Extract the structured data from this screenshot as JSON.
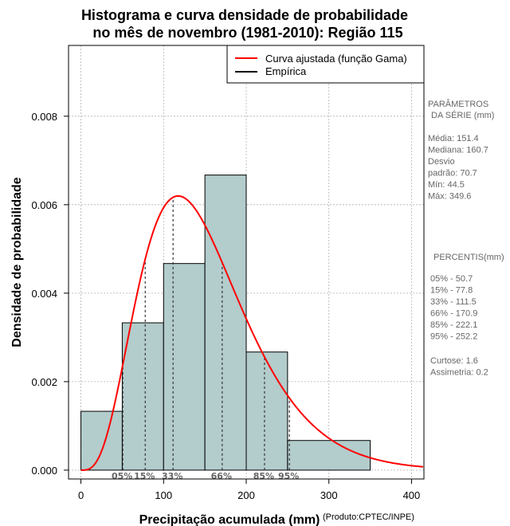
{
  "chart_data": {
    "type": "bar",
    "title_line1": "Histograma e curva densidade de probabilidade",
    "title_line2": "no mês de novembro (1981-2010): Região 115",
    "xlabel": "Precipitação acumulada (mm)",
    "ylabel": "Densidade de probabilidade",
    "credit": "(Produto:CPTEC/INPE)",
    "xlim": [
      -15,
      415
    ],
    "ylim": [
      -0.0002,
      0.0096
    ],
    "x_ticks": [
      0,
      100,
      200,
      300,
      400
    ],
    "x_tick_labels": [
      "0",
      "100",
      "200",
      "300",
      "400"
    ],
    "y_ticks": [
      0,
      0.002,
      0.004,
      0.006,
      0.008
    ],
    "y_tick_labels": [
      "0.000",
      "0.002",
      "0.004",
      "0.006",
      "0.008"
    ],
    "bins": [
      {
        "start": 0,
        "end": 50,
        "density": 0.00133
      },
      {
        "start": 50,
        "end": 100,
        "density": 0.00333
      },
      {
        "start": 100,
        "end": 150,
        "density": 0.00467
      },
      {
        "start": 150,
        "end": 200,
        "density": 0.00667
      },
      {
        "start": 200,
        "end": 250,
        "density": 0.00267
      },
      {
        "start": 250,
        "end": 350,
        "density": 0.00067
      }
    ],
    "gamma_curve": {
      "name": "Curva ajustada (função Gama)",
      "shape": 4.5,
      "scale": 33.6,
      "color": "#ff0000"
    },
    "empirical": {
      "name": "Empírica",
      "color": "#000000"
    },
    "bar_color": "#b3cccc",
    "percentile_markers": [
      {
        "label": "05%",
        "value": 50.7
      },
      {
        "label": "15%",
        "value": 77.8
      },
      {
        "label": "33%",
        "value": 111.5
      },
      {
        "label": "66%",
        "value": 170.9
      },
      {
        "label": "85%",
        "value": 222.1
      },
      {
        "label": "95%",
        "value": 252.2
      }
    ],
    "legend_position": "top-right",
    "grid": true
  },
  "side_panel": {
    "params_title_line1": "PARÂMETROS",
    "params_title_line2": "DA SÉRIE (mm)",
    "stats": [
      "Média:  151.4",
      "Mediana:  160.7",
      "Desvio",
      "padrão:  70.7",
      "Mín:  44.5",
      "Máx:  349.6"
    ],
    "percentis_title": "PERCENTIS(mm)",
    "percentis": [
      "05% -  50.7",
      "15% -  77.8",
      "33% -  111.5",
      "66% -  170.9",
      "85% -  222.1",
      "95% -  252.2"
    ],
    "extras": [
      "Curtose:  1.6",
      "Assimetria:  0.2"
    ]
  }
}
